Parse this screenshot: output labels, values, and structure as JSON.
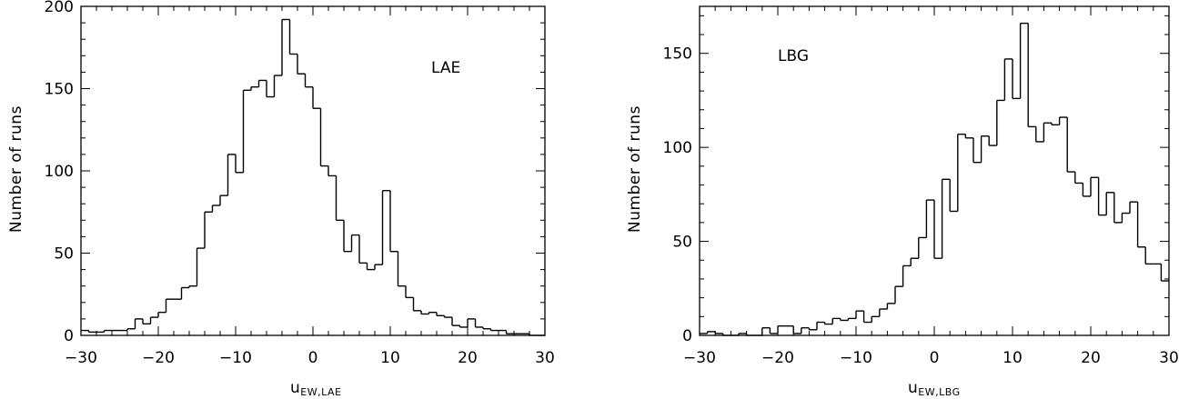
{
  "chart_data": [
    {
      "type": "histogram",
      "panel_label": "LAE",
      "ylabel": "Number of runs",
      "xlabel_main": "u",
      "xlabel_sub": "EW,LAE",
      "xlim": [
        -30,
        30
      ],
      "ylim": [
        0,
        200
      ],
      "xticks": [
        -30,
        -20,
        -10,
        0,
        10,
        20,
        30
      ],
      "yticks": [
        0,
        50,
        100,
        150,
        200
      ],
      "bin_width": 1,
      "bin_start": -30,
      "values": [
        3,
        2,
        2,
        3,
        3,
        3,
        4,
        10,
        7,
        11,
        14,
        22,
        22,
        29,
        30,
        53,
        75,
        79,
        85,
        110,
        99,
        149,
        151,
        155,
        145,
        158,
        192,
        171,
        159,
        151,
        138,
        103,
        97,
        70,
        51,
        61,
        44,
        40,
        43,
        88,
        51,
        30,
        23,
        15,
        13,
        14,
        12,
        11,
        6,
        5,
        10,
        5,
        4,
        3,
        3,
        1,
        1,
        1,
        0,
        0
      ],
      "grid": false,
      "color": "#000000"
    },
    {
      "type": "histogram",
      "panel_label": "LBG",
      "ylabel": "Number of runs",
      "xlabel_main": "u",
      "xlabel_sub": "EW,LBG",
      "xlim": [
        -30,
        30
      ],
      "ylim": [
        0,
        175
      ],
      "xticks": [
        -30,
        -20,
        -10,
        0,
        10,
        20,
        30
      ],
      "yticks": [
        0,
        50,
        100,
        150
      ],
      "bin_width": 1,
      "bin_start": -30,
      "values": [
        1,
        2,
        1,
        0,
        0,
        1,
        0,
        0,
        4,
        1,
        5,
        5,
        1,
        4,
        3,
        7,
        6,
        9,
        8,
        9,
        13,
        7,
        10,
        14,
        17,
        26,
        37,
        41,
        52,
        72,
        41,
        83,
        66,
        107,
        105,
        92,
        106,
        101,
        125,
        147,
        126,
        166,
        111,
        103,
        113,
        112,
        116,
        87,
        81,
        74,
        84,
        64,
        76,
        60,
        65,
        71,
        47,
        38,
        38,
        29
      ],
      "grid": false,
      "color": "#000000"
    }
  ]
}
